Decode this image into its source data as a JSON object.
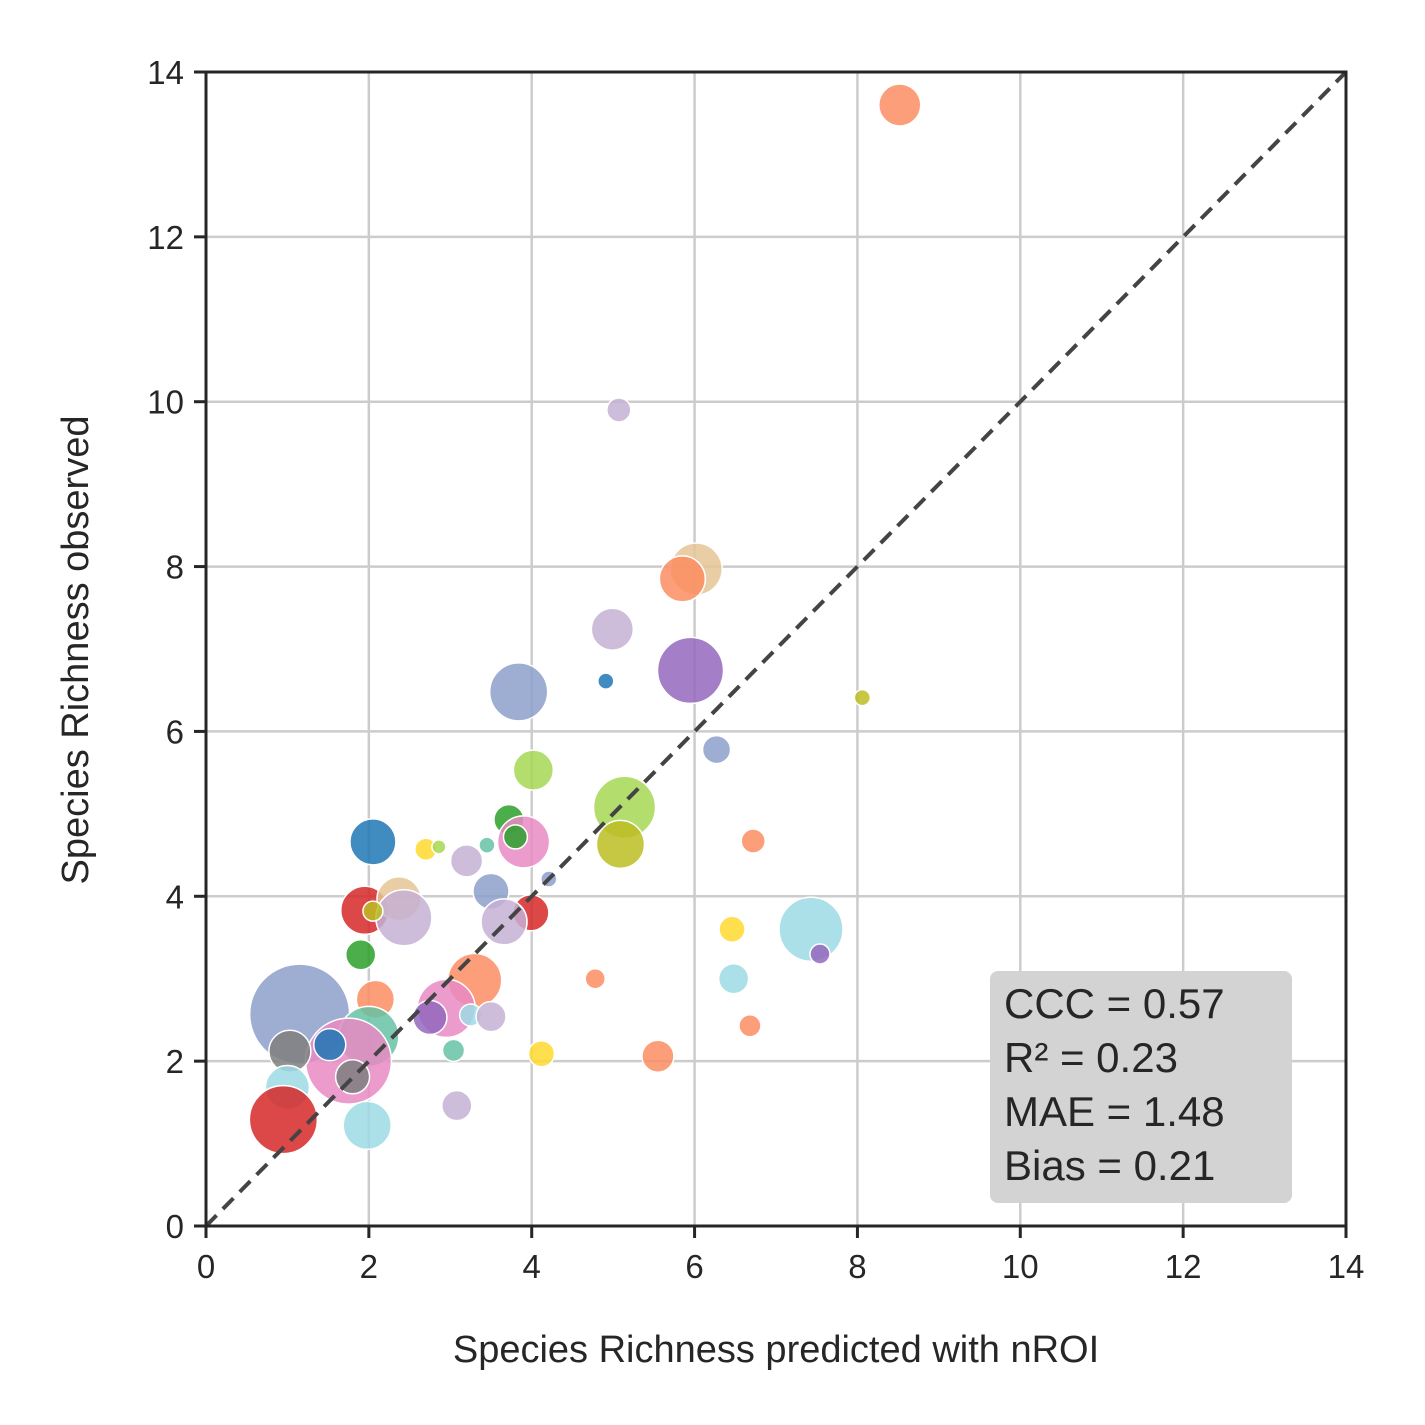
{
  "chart_data": {
    "type": "scatter",
    "title": "",
    "xlabel": "Species Richness predicted with nROI",
    "ylabel": "Species Richness observed",
    "xlim": [
      0,
      14
    ],
    "ylim": [
      0,
      14
    ],
    "xticks": [
      "0",
      "2",
      "4",
      "6",
      "8",
      "10",
      "12",
      "14"
    ],
    "yticks": [
      "0",
      "2",
      "4",
      "6",
      "8",
      "10",
      "12",
      "14"
    ],
    "grid": true,
    "reference_line": "y = x (dashed)",
    "stats": [
      "CCC = 0.57",
      "R² = 0.23",
      "MAE = 1.48",
      "Bias = 0.21"
    ],
    "stats_placement": "bottom-right",
    "points": [
      {
        "x": 8.52,
        "y": 13.6,
        "size": 21,
        "color": "#fc8d62"
      },
      {
        "x": 5.07,
        "y": 9.9,
        "size": 12,
        "color": "#c5b0d5"
      },
      {
        "x": 6.02,
        "y": 7.97,
        "size": 26,
        "color": "#e5c494"
      },
      {
        "x": 5.85,
        "y": 7.85,
        "size": 23,
        "color": "#fc8d62"
      },
      {
        "x": 4.99,
        "y": 7.24,
        "size": 21,
        "color": "#c5b0d5"
      },
      {
        "x": 5.95,
        "y": 6.74,
        "size": 33,
        "color": "#9467bd"
      },
      {
        "x": 3.84,
        "y": 6.48,
        "size": 29,
        "color": "#8da0cb"
      },
      {
        "x": 4.91,
        "y": 6.61,
        "size": 8,
        "color": "#1f77b4"
      },
      {
        "x": 8.06,
        "y": 6.41,
        "size": 8,
        "color": "#bcbd22"
      },
      {
        "x": 6.27,
        "y": 5.78,
        "size": 14,
        "color": "#8da0cb"
      },
      {
        "x": 4.02,
        "y": 5.53,
        "size": 20,
        "color": "#a6d854"
      },
      {
        "x": 5.14,
        "y": 5.08,
        "size": 31,
        "color": "#a6d854"
      },
      {
        "x": 3.72,
        "y": 4.93,
        "size": 15,
        "color": "#2ca02c"
      },
      {
        "x": 3.9,
        "y": 4.66,
        "size": 26,
        "color": "#e78ac3"
      },
      {
        "x": 3.8,
        "y": 4.72,
        "size": 12,
        "color": "#2ca02c"
      },
      {
        "x": 5.09,
        "y": 4.63,
        "size": 24,
        "color": "#bcbd22"
      },
      {
        "x": 2.05,
        "y": 4.66,
        "size": 23,
        "color": "#1f77b4"
      },
      {
        "x": 2.7,
        "y": 4.57,
        "size": 11,
        "color": "#ffd92f"
      },
      {
        "x": 2.86,
        "y": 4.6,
        "size": 7,
        "color": "#a6d854"
      },
      {
        "x": 3.2,
        "y": 4.43,
        "size": 16,
        "color": "#c5b0d5"
      },
      {
        "x": 3.45,
        "y": 4.62,
        "size": 8,
        "color": "#66c2a5"
      },
      {
        "x": 6.72,
        "y": 4.67,
        "size": 12,
        "color": "#fc8d62"
      },
      {
        "x": 4.21,
        "y": 4.21,
        "size": 8,
        "color": "#8da0cb"
      },
      {
        "x": 3.5,
        "y": 4.06,
        "size": 18,
        "color": "#8da0cb"
      },
      {
        "x": 1.95,
        "y": 3.83,
        "size": 24,
        "color": "#d62728"
      },
      {
        "x": 2.37,
        "y": 3.97,
        "size": 22,
        "color": "#e5c494"
      },
      {
        "x": 2.43,
        "y": 3.74,
        "size": 28,
        "color": "#c5b0d5"
      },
      {
        "x": 2.05,
        "y": 3.82,
        "size": 10,
        "color": "#bcbd22"
      },
      {
        "x": 3.99,
        "y": 3.8,
        "size": 18,
        "color": "#d62728"
      },
      {
        "x": 3.66,
        "y": 3.69,
        "size": 23,
        "color": "#c5b0d5"
      },
      {
        "x": 6.46,
        "y": 3.6,
        "size": 13,
        "color": "#ffd92f"
      },
      {
        "x": 7.43,
        "y": 3.6,
        "size": 32,
        "color": "#9edae5"
      },
      {
        "x": 7.54,
        "y": 3.3,
        "size": 10,
        "color": "#9467bd"
      },
      {
        "x": 1.9,
        "y": 3.29,
        "size": 15,
        "color": "#2ca02c"
      },
      {
        "x": 3.3,
        "y": 2.98,
        "size": 27,
        "color": "#fc8d62"
      },
      {
        "x": 4.78,
        "y": 3.0,
        "size": 10,
        "color": "#fc8d62"
      },
      {
        "x": 6.48,
        "y": 3.0,
        "size": 15,
        "color": "#9edae5"
      },
      {
        "x": 2.08,
        "y": 2.75,
        "size": 19,
        "color": "#fc8d62"
      },
      {
        "x": 1.15,
        "y": 2.57,
        "size": 50,
        "color": "#8da0cb"
      },
      {
        "x": 2.0,
        "y": 2.3,
        "size": 30,
        "color": "#66c2a5"
      },
      {
        "x": 1.75,
        "y": 2.0,
        "size": 43,
        "color": "#e78ac3"
      },
      {
        "x": 2.95,
        "y": 2.64,
        "size": 29,
        "color": "#e78ac3"
      },
      {
        "x": 2.75,
        "y": 2.53,
        "size": 17,
        "color": "#9467bd"
      },
      {
        "x": 3.25,
        "y": 2.56,
        "size": 11,
        "color": "#9edae5"
      },
      {
        "x": 3.5,
        "y": 2.54,
        "size": 15,
        "color": "#c5b0d5"
      },
      {
        "x": 6.68,
        "y": 2.43,
        "size": 11,
        "color": "#fc8d62"
      },
      {
        "x": 1.52,
        "y": 2.2,
        "size": 16,
        "color": "#1f77b4"
      },
      {
        "x": 1.03,
        "y": 2.12,
        "size": 21,
        "color": "#7f7f7f"
      },
      {
        "x": 3.04,
        "y": 2.13,
        "size": 11,
        "color": "#66c2a5"
      },
      {
        "x": 4.12,
        "y": 2.09,
        "size": 13,
        "color": "#ffd92f"
      },
      {
        "x": 5.55,
        "y": 2.06,
        "size": 16,
        "color": "#fc8d62"
      },
      {
        "x": 1.8,
        "y": 1.81,
        "size": 17,
        "color": "#7f7f7f"
      },
      {
        "x": 1.0,
        "y": 1.68,
        "size": 22,
        "color": "#9edae5"
      },
      {
        "x": 3.08,
        "y": 1.46,
        "size": 15,
        "color": "#c5b0d5"
      },
      {
        "x": 0.95,
        "y": 1.29,
        "size": 34,
        "color": "#d62728"
      },
      {
        "x": 1.98,
        "y": 1.22,
        "size": 24,
        "color": "#9edae5"
      }
    ]
  }
}
